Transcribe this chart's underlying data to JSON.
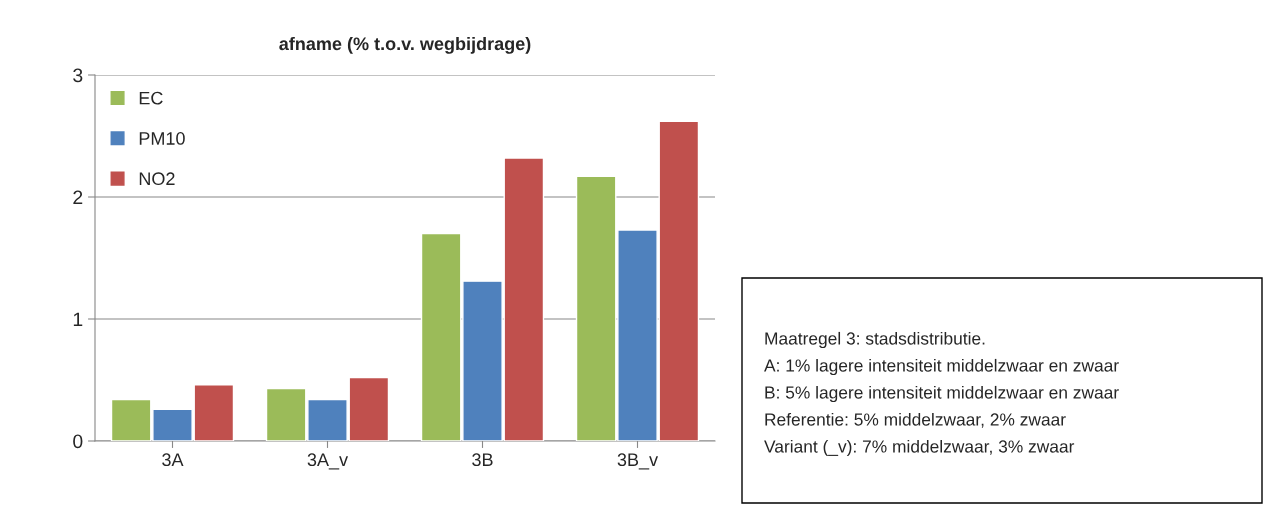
{
  "chart_data": {
    "type": "bar",
    "title": "afname (% t.o.v. wegbijdrage)",
    "categories": [
      "3A",
      "3A_v",
      "3B",
      "3B_v"
    ],
    "series": [
      {
        "name": "EC",
        "color": "#9bbb59",
        "values": [
          0.34,
          0.43,
          1.7,
          2.17
        ]
      },
      {
        "name": "PM10",
        "color": "#4f81bd",
        "values": [
          0.26,
          0.34,
          1.31,
          1.73
        ]
      },
      {
        "name": "NO2",
        "color": "#c0504d",
        "values": [
          0.46,
          0.52,
          2.32,
          2.62
        ]
      }
    ],
    "ylim": [
      0,
      3
    ],
    "yticks": [
      0,
      1,
      2,
      3
    ],
    "grid": "y",
    "legend": "top left",
    "annotations": [
      "Maatregel 3: stadsdistributie.",
      "A: 1% lagere intensiteit middelzwaar en zwaar",
      "B: 5% lagere intensiteit middelzwaar en zwaar",
      "Referentie: 5% middelzwaar, 2% zwaar",
      "Variant (_v): 7% middelzwaar, 3% zwaar"
    ]
  }
}
